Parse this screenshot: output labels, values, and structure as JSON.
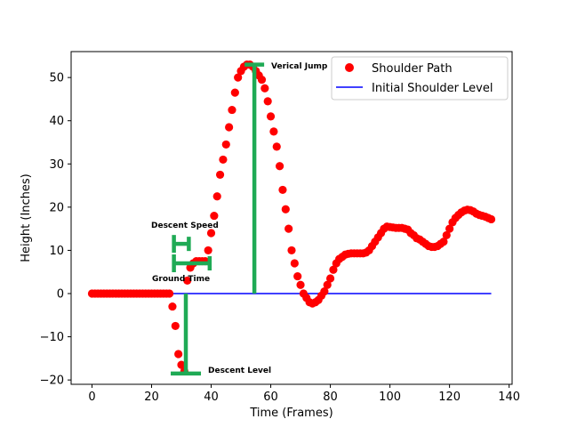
{
  "chart_data": {
    "type": "scatter",
    "xlabel": "Time (Frames)",
    "ylabel": "Height (Inches)",
    "xlim": [
      -7,
      141
    ],
    "ylim": [
      -21,
      56
    ],
    "xticks": [
      0,
      20,
      40,
      60,
      80,
      100,
      120,
      140
    ],
    "yticks": [
      -20,
      -10,
      0,
      10,
      20,
      30,
      40,
      50
    ],
    "grid": false,
    "legend_position": "top-right",
    "series": [
      {
        "name": "Shoulder Path",
        "kind": "points",
        "color": "#ff0000",
        "x": [
          0,
          1,
          2,
          3,
          4,
          5,
          6,
          7,
          8,
          9,
          10,
          11,
          12,
          13,
          14,
          15,
          16,
          17,
          18,
          19,
          20,
          21,
          22,
          23,
          24,
          25,
          26,
          27,
          28,
          29,
          30,
          31,
          32,
          33,
          34,
          35,
          36,
          37,
          38,
          39,
          40,
          41,
          42,
          43,
          44,
          45,
          46,
          47,
          48,
          49,
          50,
          51,
          52,
          53,
          54,
          55,
          56,
          57,
          58,
          59,
          60,
          61,
          62,
          63,
          64,
          65,
          66,
          67,
          68,
          69,
          70,
          71,
          72,
          73,
          74,
          75,
          76,
          77,
          78,
          79,
          80,
          81,
          82,
          83,
          84,
          85,
          86,
          87,
          88,
          89,
          90,
          91,
          92,
          93,
          94,
          95,
          96,
          97,
          98,
          99,
          100,
          101,
          102,
          103,
          104,
          105,
          106,
          107,
          108,
          109,
          110,
          111,
          112,
          113,
          114,
          115,
          116,
          117,
          118,
          119,
          120,
          121,
          122,
          123,
          124,
          125,
          126,
          127,
          128,
          129,
          130,
          131,
          132,
          133,
          134
        ],
        "y": [
          0,
          0,
          0,
          0,
          0,
          0,
          0,
          0,
          0,
          0,
          0,
          0,
          0,
          0,
          0,
          0,
          0,
          0,
          0,
          0,
          0,
          0,
          0,
          0,
          0,
          0,
          0,
          -3,
          -7.5,
          -14,
          -16.5,
          -18,
          3,
          6,
          7,
          7.5,
          7.5,
          7.5,
          7.5,
          10,
          14,
          18,
          22.5,
          27.5,
          31,
          34.5,
          38.5,
          42.5,
          46.5,
          50,
          51.5,
          52.5,
          53,
          53,
          52.5,
          51.5,
          50.5,
          49.5,
          47.5,
          44.5,
          41,
          37.5,
          34,
          29.5,
          24,
          19.5,
          15,
          10,
          7,
          4,
          2,
          0,
          -1,
          -2,
          -2.3,
          -2,
          -1.5,
          -0.5,
          0.5,
          2,
          3.5,
          5.5,
          7,
          8,
          8.5,
          9,
          9.2,
          9.3,
          9.3,
          9.3,
          9.3,
          9.3,
          9.5,
          10,
          11,
          12,
          13,
          14,
          15,
          15.5,
          15.4,
          15.3,
          15.2,
          15.2,
          15.2,
          15,
          14.8,
          14,
          13.5,
          12.8,
          12.5,
          12,
          11.5,
          11,
          10.8,
          10.8,
          11,
          11.5,
          12,
          13.5,
          15,
          16.5,
          17.5,
          18.2,
          18.8,
          19.2,
          19.4,
          19.3,
          19,
          18.5,
          18.2,
          18,
          17.8,
          17.5,
          17.2
        ]
      },
      {
        "name": "Initial Shoulder Level",
        "kind": "line",
        "color": "#0000ff",
        "x": [
          0,
          134
        ],
        "y": [
          0,
          0
        ]
      }
    ],
    "annotations": {
      "color": "#1faa55",
      "vertical_jump": {
        "label": "Verical Jump",
        "x": 54.5,
        "y_bottom": 0,
        "y_top": 53
      },
      "descent_level": {
        "label": "Descent Level",
        "x": 31.5,
        "y_bottom": -18.5,
        "y_top": 0
      },
      "ground_time": {
        "label": "Ground Time",
        "x_start": 27.5,
        "x_end": 39.5,
        "y": 7
      },
      "descent_speed": {
        "label": "Descent Speed",
        "x_start": 27.5,
        "x_end": 32.5,
        "y": 11.5
      }
    }
  }
}
